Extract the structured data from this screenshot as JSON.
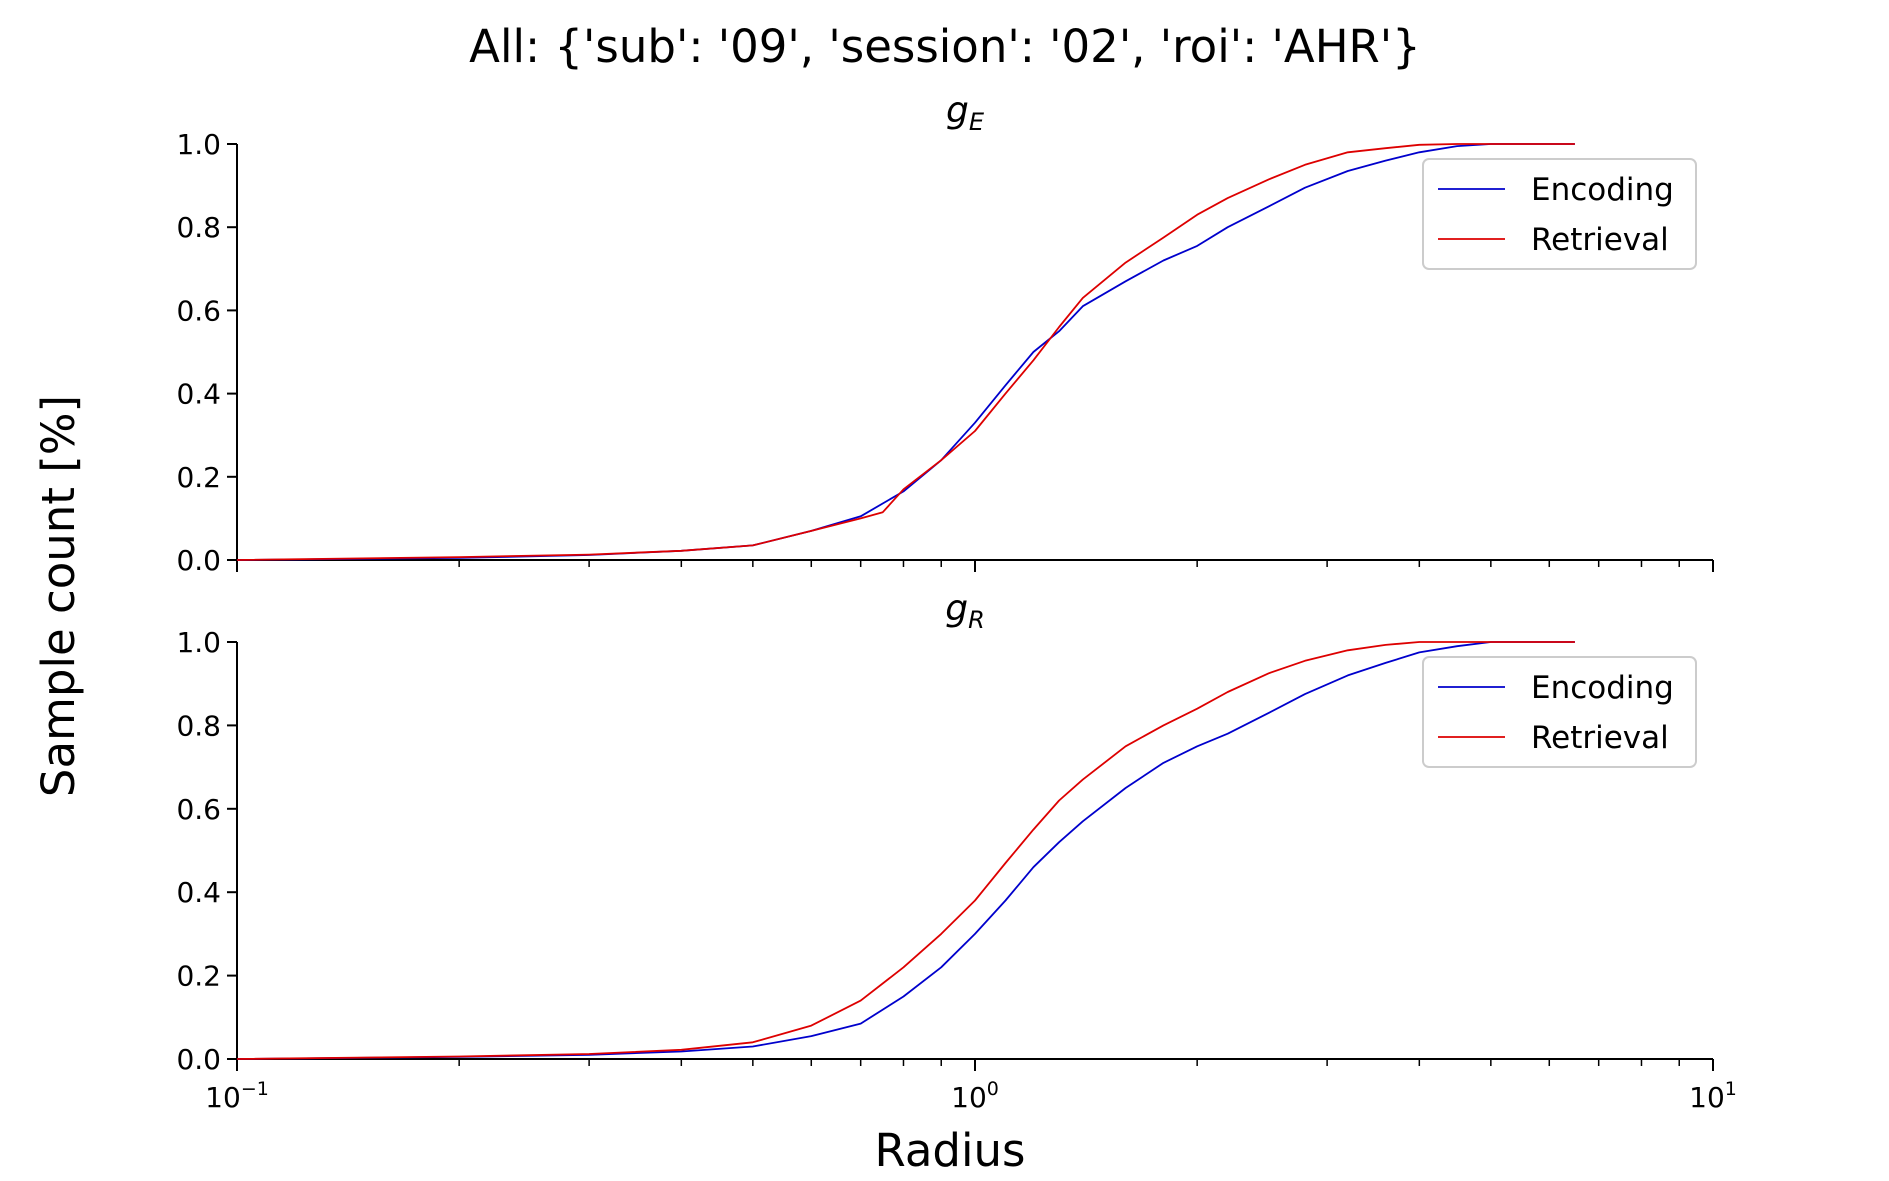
{
  "title": "All: {'sub': '09', 'session': '02', 'roi': 'AHR'}",
  "xlabel": "Radius",
  "ylabel": "Sample count [%]",
  "colors": {
    "Encoding": "#0000cc",
    "Retrieval": "#dd0000"
  },
  "chart_data": [
    {
      "type": "line",
      "title": "g",
      "title_subscript": "E",
      "xscale": "log",
      "xlim": [
        0.1,
        10
      ],
      "ylim": [
        0.0,
        1.0
      ],
      "xticks": [
        {
          "value": 0.1,
          "base": "10",
          "exp": "−1"
        },
        {
          "value": 1,
          "base": "10",
          "exp": "0"
        },
        {
          "value": 10,
          "base": "10",
          "exp": "1"
        }
      ],
      "show_xtick_labels": false,
      "yticks": [
        {
          "value": 0.0,
          "label": "0.0"
        },
        {
          "value": 0.2,
          "label": "0.2"
        },
        {
          "value": 0.4,
          "label": "0.4"
        },
        {
          "value": 0.6,
          "label": "0.6"
        },
        {
          "value": 0.8,
          "label": "0.8"
        },
        {
          "value": 1.0,
          "label": "1.0"
        }
      ],
      "legend": "top-right",
      "series": [
        {
          "name": "Encoding",
          "x": [
            0.1,
            0.2,
            0.3,
            0.4,
            0.5,
            0.6,
            0.7,
            0.8,
            0.9,
            1.0,
            1.1,
            1.2,
            1.3,
            1.4,
            1.6,
            1.8,
            2.0,
            2.2,
            2.5,
            2.8,
            3.2,
            3.6,
            4.0,
            4.5,
            5.0,
            5.5,
            6.0,
            6.5
          ],
          "y": [
            0.0,
            0.005,
            0.012,
            0.022,
            0.035,
            0.07,
            0.105,
            0.165,
            0.24,
            0.33,
            0.42,
            0.5,
            0.55,
            0.61,
            0.67,
            0.72,
            0.755,
            0.8,
            0.85,
            0.895,
            0.935,
            0.96,
            0.98,
            0.995,
            1.0,
            1.0,
            1.0,
            1.0
          ]
        },
        {
          "name": "Retrieval",
          "x": [
            0.1,
            0.2,
            0.3,
            0.4,
            0.5,
            0.6,
            0.7,
            0.75,
            0.8,
            0.9,
            1.0,
            1.1,
            1.2,
            1.3,
            1.4,
            1.6,
            1.8,
            2.0,
            2.2,
            2.5,
            2.8,
            3.2,
            3.6,
            4.0,
            4.5,
            5.0,
            5.5,
            6.0,
            6.5
          ],
          "y": [
            0.0,
            0.007,
            0.013,
            0.022,
            0.035,
            0.07,
            0.1,
            0.115,
            0.17,
            0.24,
            0.31,
            0.4,
            0.48,
            0.56,
            0.63,
            0.715,
            0.775,
            0.83,
            0.87,
            0.915,
            0.95,
            0.98,
            0.99,
            0.998,
            1.0,
            1.0,
            1.0,
            1.0,
            1.0
          ]
        }
      ]
    },
    {
      "type": "line",
      "title": "g",
      "title_subscript": "R",
      "xscale": "log",
      "xlim": [
        0.1,
        10
      ],
      "ylim": [
        0.0,
        1.0
      ],
      "xticks": [
        {
          "value": 0.1,
          "base": "10",
          "exp": "−1"
        },
        {
          "value": 1,
          "base": "10",
          "exp": "0"
        },
        {
          "value": 10,
          "base": "10",
          "exp": "1"
        }
      ],
      "show_xtick_labels": true,
      "yticks": [
        {
          "value": 0.0,
          "label": "0.0"
        },
        {
          "value": 0.2,
          "label": "0.2"
        },
        {
          "value": 0.4,
          "label": "0.4"
        },
        {
          "value": 0.6,
          "label": "0.6"
        },
        {
          "value": 0.8,
          "label": "0.8"
        },
        {
          "value": 1.0,
          "label": "1.0"
        }
      ],
      "legend": "top-right",
      "series": [
        {
          "name": "Encoding",
          "x": [
            0.1,
            0.2,
            0.3,
            0.4,
            0.5,
            0.6,
            0.7,
            0.8,
            0.9,
            1.0,
            1.1,
            1.2,
            1.3,
            1.4,
            1.6,
            1.8,
            2.0,
            2.2,
            2.5,
            2.8,
            3.2,
            3.6,
            4.0,
            4.5,
            5.0,
            5.5,
            6.0,
            6.5
          ],
          "y": [
            0.0,
            0.005,
            0.01,
            0.018,
            0.03,
            0.055,
            0.085,
            0.15,
            0.22,
            0.3,
            0.38,
            0.46,
            0.52,
            0.57,
            0.65,
            0.71,
            0.75,
            0.78,
            0.83,
            0.875,
            0.92,
            0.95,
            0.975,
            0.99,
            1.0,
            1.0,
            1.0,
            1.0
          ]
        },
        {
          "name": "Retrieval",
          "x": [
            0.1,
            0.2,
            0.3,
            0.4,
            0.5,
            0.6,
            0.7,
            0.8,
            0.9,
            1.0,
            1.1,
            1.2,
            1.3,
            1.4,
            1.6,
            1.8,
            2.0,
            2.2,
            2.5,
            2.8,
            3.2,
            3.6,
            4.0,
            4.5,
            5.0,
            5.5,
            6.0,
            6.5
          ],
          "y": [
            0.0,
            0.006,
            0.012,
            0.022,
            0.04,
            0.08,
            0.14,
            0.22,
            0.3,
            0.38,
            0.47,
            0.55,
            0.62,
            0.67,
            0.75,
            0.8,
            0.84,
            0.88,
            0.925,
            0.955,
            0.98,
            0.993,
            1.0,
            1.0,
            1.0,
            1.0,
            1.0,
            1.0
          ]
        }
      ]
    }
  ]
}
